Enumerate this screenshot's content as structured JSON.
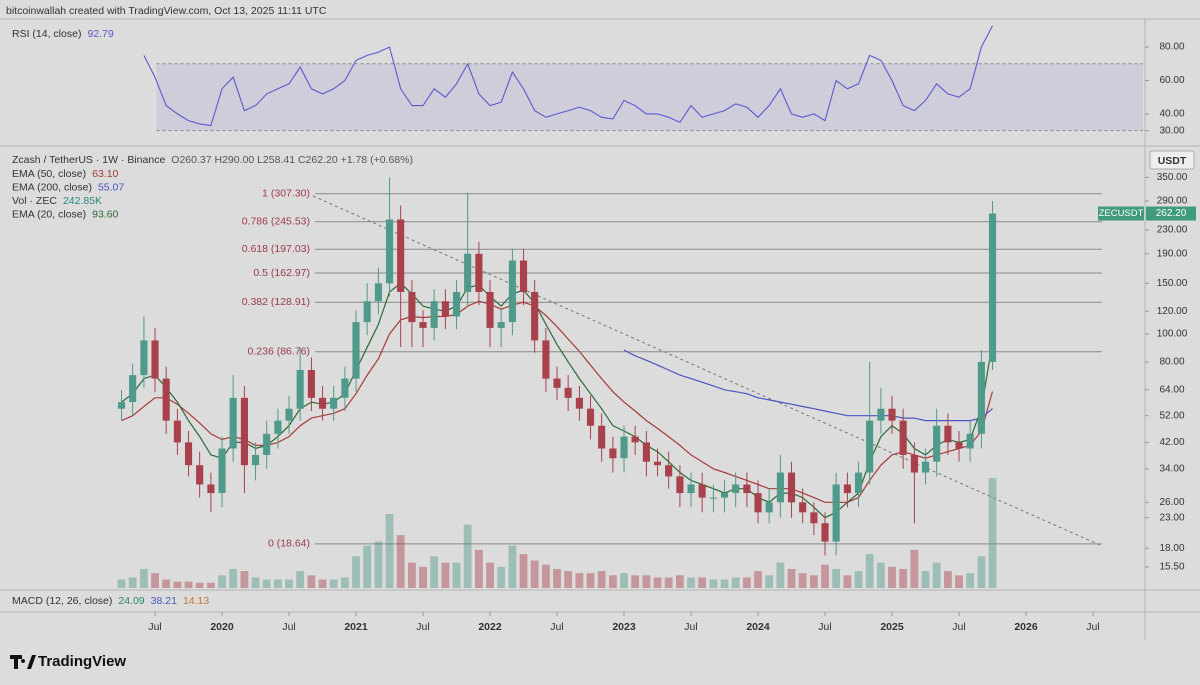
{
  "header": "bitcoinwallah created with TradingView.com, Oct 13, 2025 11:11 UTC",
  "footer_logo": "TradingView",
  "chart_data": {
    "type": "candlestick",
    "title": "Zcash / TetherUS · 1W · Binance",
    "ohlc_summary": "O260.37 H290.00 L258.41 C262.20 +1.78 (+0.68%)",
    "currency": "USDT",
    "log_scale": true,
    "up_color": "#4f9a8a",
    "down_color": "#a8414c",
    "xlim": [
      2018.343,
      2026.873
    ],
    "ylim": [
      13.1,
      436
    ],
    "xticks": [
      {
        "value": 2019.5,
        "label": "Jul"
      },
      2020,
      {
        "value": 2020.5,
        "label": "Jul"
      },
      2021,
      {
        "value": 2021.5,
        "label": "Jul"
      },
      2022,
      {
        "value": 2022.5,
        "label": "Jul"
      },
      2023,
      {
        "value": 2023.5,
        "label": "Jul"
      },
      2024,
      {
        "value": 2024.5,
        "label": "Jul"
      },
      2025,
      {
        "value": 2025.5,
        "label": "Jul"
      },
      2026,
      {
        "value": 2026.5,
        "label": "Jul"
      }
    ],
    "yticks": [
      {
        "value": 15.5,
        "label": "15.50"
      },
      {
        "value": 18,
        "label": "18.00"
      },
      {
        "value": 23,
        "label": "23.00"
      },
      {
        "value": 26,
        "label": "26.00"
      },
      {
        "value": 34,
        "label": "34.00"
      },
      {
        "value": 42,
        "label": "42.00"
      },
      {
        "value": 52,
        "label": "52.00"
      },
      {
        "value": 64,
        "label": "64.00"
      },
      {
        "value": 80,
        "label": "80.00"
      },
      {
        "value": 100,
        "label": "100.00"
      },
      {
        "value": 120,
        "label": "120.00"
      },
      {
        "value": 150,
        "label": "150.00"
      },
      {
        "value": 190,
        "label": "190.00"
      },
      {
        "value": 230,
        "label": "230.00"
      },
      {
        "value": 290,
        "label": "290.00"
      },
      {
        "value": 350,
        "label": "350.00"
      }
    ],
    "x": [
      2019.25,
      2019.333,
      2019.417,
      2019.5,
      2019.583,
      2019.667,
      2019.75,
      2019.833,
      2019.917,
      2020,
      2020.083,
      2020.167,
      2020.25,
      2020.333,
      2020.417,
      2020.5,
      2020.583,
      2020.667,
      2020.75,
      2020.833,
      2020.917,
      2021,
      2021.083,
      2021.167,
      2021.25,
      2021.333,
      2021.417,
      2021.5,
      2021.583,
      2021.667,
      2021.75,
      2021.833,
      2021.917,
      2022,
      2022.083,
      2022.167,
      2022.25,
      2022.333,
      2022.417,
      2022.5,
      2022.583,
      2022.667,
      2022.75,
      2022.833,
      2022.917,
      2023,
      2023.083,
      2023.167,
      2023.25,
      2023.333,
      2023.417,
      2023.5,
      2023.583,
      2023.667,
      2023.75,
      2023.833,
      2023.917,
      2024,
      2024.083,
      2024.167,
      2024.25,
      2024.333,
      2024.417,
      2024.5,
      2024.583,
      2024.667,
      2024.75,
      2024.833,
      2024.917,
      2025,
      2025.083,
      2025.167,
      2025.25,
      2025.333,
      2025.417,
      2025.5,
      2025.583,
      2025.667,
      2025.75
    ],
    "open": [
      55,
      58,
      72,
      95,
      70,
      50,
      42,
      35,
      30,
      28,
      40,
      60,
      35,
      38,
      45,
      50,
      55,
      75,
      60,
      55,
      60,
      70,
      110,
      130,
      150,
      250,
      140,
      110,
      105,
      130,
      115,
      140,
      190,
      140,
      105,
      110,
      180,
      140,
      95,
      70,
      65,
      60,
      55,
      48,
      40,
      37,
      44,
      42,
      36,
      35,
      32,
      28,
      30,
      27,
      27,
      28,
      30,
      28,
      24,
      26,
      33,
      26,
      24,
      22,
      19,
      30,
      28,
      33,
      50,
      55,
      50,
      38,
      33,
      36,
      48,
      42,
      40,
      45,
      80
    ],
    "high": [
      64,
      79,
      115,
      105,
      77,
      55,
      46,
      39,
      33,
      44,
      72,
      66,
      42,
      50,
      55,
      61,
      90,
      83,
      66,
      66,
      77,
      121,
      150,
      170,
      350,
      280,
      154,
      121,
      143,
      143,
      154,
      310,
      209,
      154,
      121,
      198,
      198,
      154,
      105,
      77,
      72,
      66,
      61,
      53,
      44,
      48,
      48,
      46,
      40,
      39,
      35,
      33,
      33,
      30,
      31,
      33,
      33,
      31,
      29,
      38,
      36,
      29,
      26,
      24,
      33,
      33,
      36,
      80,
      65,
      61,
      55,
      42,
      40,
      55,
      53,
      46,
      50,
      88,
      290
    ],
    "low": [
      50,
      52,
      65,
      63,
      45,
      38,
      32,
      27,
      24,
      25,
      36,
      28,
      31,
      34,
      40,
      45,
      50,
      54,
      50,
      50,
      54,
      63,
      99,
      117,
      135,
      90,
      90,
      90,
      95,
      104,
      104,
      126,
      126,
      90,
      90,
      99,
      126,
      86,
      63,
      59,
      54,
      50,
      43,
      36,
      33,
      33,
      38,
      32,
      32,
      29,
      25,
      25,
      24,
      24,
      24,
      25,
      25,
      22,
      22,
      23,
      23,
      22,
      20,
      17,
      17,
      25,
      25,
      30,
      45,
      45,
      34,
      22,
      30,
      32,
      38,
      36,
      36,
      40,
      75
    ],
    "close": [
      58,
      72,
      95,
      70,
      50,
      42,
      35,
      30,
      28,
      40,
      60,
      35,
      38,
      45,
      50,
      55,
      75,
      60,
      55,
      60,
      70,
      110,
      130,
      150,
      250,
      140,
      110,
      105,
      130,
      115,
      140,
      190,
      140,
      105,
      110,
      180,
      140,
      95,
      70,
      65,
      60,
      55,
      48,
      40,
      37,
      44,
      42,
      36,
      35,
      32,
      28,
      30,
      27,
      27,
      28,
      30,
      28,
      24,
      26,
      33,
      26,
      24,
      22,
      19,
      30,
      28,
      33,
      50,
      55,
      50,
      38,
      33,
      36,
      48,
      42,
      40,
      45,
      80,
      262.2
    ],
    "volume": {
      "name": "Vol · ZEC",
      "legend_value": "242.85K",
      "color": "#2a8a7a",
      "values": [
        40000,
        50000,
        90000,
        70000,
        40000,
        30000,
        30000,
        25000,
        25000,
        60000,
        90000,
        80000,
        50000,
        40000,
        40000,
        40000,
        80000,
        60000,
        40000,
        40000,
        50000,
        150000,
        200000,
        220000,
        350000,
        250000,
        120000,
        100000,
        150000,
        120000,
        120000,
        300000,
        180000,
        120000,
        100000,
        200000,
        160000,
        130000,
        110000,
        90000,
        80000,
        70000,
        70000,
        80000,
        60000,
        70000,
        60000,
        60000,
        50000,
        50000,
        60000,
        50000,
        50000,
        40000,
        40000,
        50000,
        50000,
        80000,
        60000,
        120000,
        90000,
        70000,
        60000,
        110000,
        90000,
        60000,
        80000,
        160000,
        120000,
        100000,
        90000,
        180000,
        80000,
        120000,
        80000,
        60000,
        70000,
        150000,
        520000
      ]
    },
    "series": [
      {
        "name": "EMA (50, close)",
        "legend_value": "63.10",
        "color": "#a83a3a",
        "values": [
          50,
          52,
          56,
          60,
          60,
          57,
          53,
          49,
          45,
          43,
          44,
          43,
          41,
          41,
          42,
          44,
          48,
          51,
          52,
          53,
          55,
          62,
          72,
          82,
          100,
          112,
          115,
          114,
          115,
          115,
          117,
          125,
          130,
          127,
          122,
          126,
          129,
          125,
          116,
          106,
          96,
          87,
          78,
          70,
          63,
          58,
          54,
          50,
          47,
          44,
          41,
          38,
          36,
          34,
          33,
          32,
          31,
          30,
          29,
          29,
          29,
          28,
          27,
          26,
          26,
          26,
          27,
          31,
          35,
          38,
          39,
          38,
          37,
          38,
          39,
          40,
          41,
          46,
          63.1
        ]
      },
      {
        "name": "EMA (200, close)",
        "legend_value": "55.07",
        "color": "#4a55c0",
        "values": [
          null,
          null,
          null,
          null,
          null,
          null,
          null,
          null,
          null,
          null,
          null,
          null,
          null,
          null,
          null,
          null,
          null,
          null,
          null,
          null,
          null,
          null,
          null,
          null,
          null,
          null,
          null,
          null,
          null,
          null,
          null,
          null,
          null,
          null,
          null,
          null,
          null,
          null,
          null,
          null,
          null,
          null,
          null,
          null,
          null,
          88,
          84,
          81,
          78,
          75,
          72,
          70,
          68,
          66,
          64,
          63,
          62,
          60,
          59,
          58,
          57,
          56,
          55,
          54,
          53,
          52,
          52,
          52,
          52,
          52,
          51,
          51,
          50,
          50,
          50,
          50,
          50,
          51,
          55.07
        ]
      },
      {
        "name": "EMA (20, close)",
        "legend_value": "93.60",
        "color": "#2a6a35",
        "values": [
          58,
          62,
          70,
          72,
          65,
          58,
          50,
          44,
          38,
          37,
          42,
          42,
          40,
          41,
          44,
          48,
          55,
          58,
          57,
          58,
          62,
          75,
          90,
          108,
          140,
          150,
          138,
          125,
          122,
          120,
          125,
          145,
          148,
          135,
          125,
          138,
          142,
          128,
          108,
          92,
          80,
          70,
          62,
          55,
          48,
          46,
          44,
          41,
          39,
          36,
          33,
          31,
          30,
          29,
          28,
          29,
          29,
          27,
          26,
          28,
          28,
          27,
          25,
          23,
          24,
          26,
          28,
          36,
          44,
          48,
          45,
          40,
          38,
          41,
          43,
          42,
          43,
          55,
          93.6
        ]
      }
    ],
    "fib": [
      {
        "value": 307.3,
        "label": "1 (307.30)"
      },
      {
        "value": 245.53,
        "label": "0.786 (245.53)"
      },
      {
        "value": 197.03,
        "label": "0.618 (197.03)"
      },
      {
        "value": 162.97,
        "label": "0.5 (162.97)"
      },
      {
        "value": 128.91,
        "label": "0.382 (128.91)"
      },
      {
        "value": 86.76,
        "label": "0.236 (86.76)"
      },
      {
        "value": 18.64,
        "label": "0 (18.64)"
      }
    ],
    "fib_color": "#9b3a4a",
    "price_tag": {
      "symbol": "ZECUSDT",
      "value": 262.2,
      "label": "262.20",
      "color": "#3f9a7e"
    }
  },
  "rsi": {
    "name": "RSI (14, close)",
    "legend_value": "92.79",
    "color": "#5a5ad0",
    "ylim": [
      22,
      95
    ],
    "bands": [
      30,
      70
    ],
    "yticks": [
      {
        "value": 80,
        "label": "80.00"
      },
      {
        "value": 60,
        "label": "60.00"
      },
      {
        "value": 40,
        "label": "40.00"
      },
      {
        "value": 30,
        "label": "30.00"
      }
    ],
    "values": [
      null,
      null,
      75,
      62,
      45,
      40,
      36,
      34,
      33,
      55,
      62,
      42,
      45,
      52,
      55,
      58,
      68,
      55,
      52,
      55,
      60,
      72,
      75,
      77,
      80,
      55,
      45,
      45,
      55,
      50,
      58,
      70,
      52,
      45,
      47,
      65,
      55,
      42,
      38,
      40,
      42,
      44,
      42,
      38,
      37,
      48,
      45,
      40,
      40,
      38,
      35,
      45,
      38,
      40,
      42,
      46,
      44,
      38,
      45,
      55,
      40,
      38,
      40,
      36,
      60,
      55,
      58,
      75,
      72,
      60,
      45,
      42,
      48,
      58,
      52,
      50,
      55,
      80,
      92.79
    ]
  },
  "macd": {
    "name": "MACD (12, 26, close)",
    "legend_values": [
      {
        "text": "24.09",
        "color": "#2a8a6a"
      },
      {
        "text": "38.21",
        "color": "#4a55c0"
      },
      {
        "text": "14.13",
        "color": "#c47a2a"
      }
    ]
  }
}
